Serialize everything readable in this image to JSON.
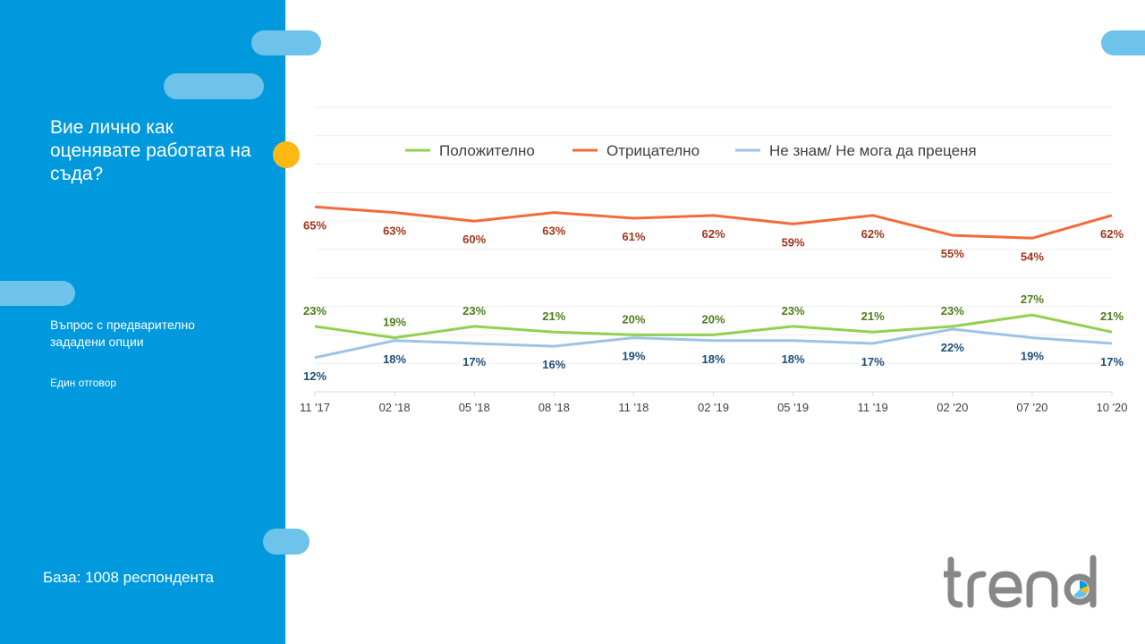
{
  "sidebar": {
    "question": "Вие лично как оценявате работата на съда?",
    "subtext": "Въпрос с предварително зададени опции",
    "answer_type": "Един отговор",
    "base": "База: 1008 респондента"
  },
  "logo": {
    "name": "trend-logo",
    "colors": [
      "#878787",
      "#0099de",
      "#fdb813"
    ]
  },
  "chart_data": {
    "type": "line",
    "categories": [
      "11 '17",
      "02 '18",
      "05 '18",
      "08 '18",
      "11 '18",
      "02 '19",
      "05 '19",
      "11 '19",
      "02 '20",
      "07 '20",
      "10 '20"
    ],
    "ylim": [
      0,
      100
    ],
    "grid": true,
    "legend_position": "top-center",
    "series": [
      {
        "name": "Положително",
        "color": "#92d050",
        "label_color": "#4f7d1b",
        "label_pos": "above",
        "values": [
          23,
          19,
          23,
          21,
          20,
          20,
          23,
          21,
          23,
          27,
          21
        ],
        "labels": [
          "23%",
          "19%",
          "23%",
          "21%",
          "20%",
          "20%",
          "23%",
          "21%",
          "23%",
          "27%",
          "21%"
        ]
      },
      {
        "name": "Отрицателно",
        "color": "#f26b3a",
        "label_color": "#a0361a",
        "label_pos": "below",
        "values": [
          65,
          63,
          60,
          63,
          61,
          62,
          59,
          62,
          55,
          54,
          62
        ],
        "labels": [
          "65%",
          "63%",
          "60%",
          "63%",
          "61%",
          "62%",
          "59%",
          "62%",
          "55%",
          "54%",
          "62%"
        ]
      },
      {
        "name": "Не знам/ Не мога да преценя",
        "color": "#9dc3e6",
        "label_color": "#1f4e79",
        "label_pos": "below",
        "values": [
          12,
          18,
          17,
          16,
          19,
          18,
          18,
          17,
          22,
          19,
          17
        ],
        "labels": [
          "12%",
          "18%",
          "17%",
          "16%",
          "19%",
          "18%",
          "18%",
          "17%",
          "22%",
          "19%",
          "17%"
        ]
      }
    ]
  }
}
